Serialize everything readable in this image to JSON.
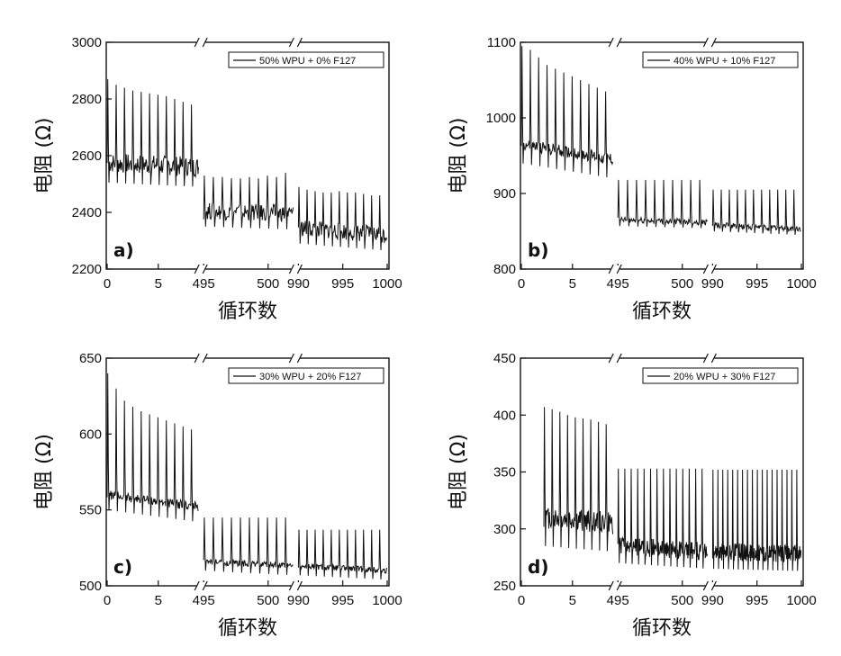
{
  "chart_data": [
    {
      "type": "line",
      "panel_label": "a)",
      "xlabel": "循环数",
      "ylabel": "电阻 (Ω)",
      "ylim": [
        2200,
        3000
      ],
      "yticks": [
        "2200",
        "2400",
        "2600",
        "2800",
        "3000"
      ],
      "segments": [
        {
          "xlim": [
            0,
            9
          ],
          "xticks": [
            "0",
            "5"
          ],
          "baseline": [
            2575,
            2560
          ],
          "peaks": [
            2870,
            2850,
            2840,
            2830,
            2825,
            2820,
            2815,
            2810,
            2800,
            2790,
            2780
          ],
          "trough_depth": 70,
          "noise": 35
        },
        {
          "xlim": [
            495,
            502
          ],
          "xticks": [
            "495",
            "500"
          ],
          "baseline": [
            2405,
            2395
          ],
          "peaks": [
            2530,
            2525,
            2525,
            2520,
            2520,
            2525,
            2520,
            2530,
            2525,
            2540
          ],
          "trough_depth": 55,
          "noise": 30
        },
        {
          "xlim": [
            990,
            1000
          ],
          "xticks": [
            "990",
            "995",
            "1000"
          ],
          "baseline": [
            2345,
            2320
          ],
          "peaks": [
            2490,
            2480,
            2475,
            2470,
            2470,
            2475,
            2470,
            2470,
            2465,
            2460,
            2460
          ],
          "trough_depth": 55,
          "noise": 30
        }
      ],
      "series": [
        {
          "name": "50% WPU + 0% F127"
        }
      ]
    },
    {
      "type": "line",
      "panel_label": "b)",
      "xlabel": "循环数",
      "ylabel": "电阻 (Ω)",
      "ylim": [
        800,
        1100
      ],
      "yticks": [
        "800",
        "900",
        "1000",
        "1100"
      ],
      "segments": [
        {
          "xlim": [
            0,
            9
          ],
          "xticks": [
            "0",
            "5"
          ],
          "baseline": [
            965,
            945
          ],
          "peaks": [
            1095,
            1090,
            1080,
            1070,
            1065,
            1060,
            1055,
            1050,
            1045,
            1040,
            1035
          ],
          "trough_depth": 25,
          "noise": 8
        },
        {
          "xlim": [
            495,
            502
          ],
          "xticks": [
            "495",
            "500"
          ],
          "baseline": [
            865,
            862
          ],
          "peaks": [
            918,
            918,
            918,
            918,
            918,
            918,
            918,
            918,
            918,
            918
          ],
          "trough_depth": 8,
          "noise": 4
        },
        {
          "xlim": [
            990,
            1000
          ],
          "xticks": [
            "990",
            "995",
            "1000"
          ],
          "baseline": [
            858,
            853
          ],
          "peaks": [
            905,
            905,
            905,
            905,
            905,
            905,
            905,
            905,
            905,
            905,
            905
          ],
          "trough_depth": 8,
          "noise": 4
        }
      ],
      "series": [
        {
          "name": "40% WPU + 10% F127"
        }
      ]
    },
    {
      "type": "line",
      "panel_label": "c)",
      "xlabel": "循环数",
      "ylabel": "电阻 (Ω)",
      "ylim": [
        500,
        650
      ],
      "yticks": [
        "500",
        "550",
        "600",
        "650"
      ],
      "segments": [
        {
          "xlim": [
            0,
            9
          ],
          "xticks": [
            "0",
            "5"
          ],
          "baseline": [
            560,
            552
          ],
          "peaks": [
            640,
            630,
            622,
            618,
            615,
            613,
            611,
            609,
            607,
            605,
            603
          ],
          "trough_depth": 10,
          "noise": 3
        },
        {
          "xlim": [
            495,
            502
          ],
          "xticks": [
            "495",
            "500"
          ],
          "baseline": [
            516,
            513
          ],
          "peaks": [
            545,
            545,
            545,
            545,
            545,
            545,
            545,
            545,
            545,
            545
          ],
          "trough_depth": 6,
          "noise": 2
        },
        {
          "xlim": [
            990,
            1000
          ],
          "xticks": [
            "990",
            "995",
            "1000"
          ],
          "baseline": [
            513,
            510
          ],
          "peaks": [
            537,
            537,
            537,
            537,
            537,
            537,
            537,
            537,
            537,
            537,
            537
          ],
          "trough_depth": 6,
          "noise": 2
        }
      ],
      "series": [
        {
          "name": "30% WPU + 20% F127"
        }
      ]
    },
    {
      "type": "line",
      "panel_label": "d)",
      "xlabel": "循环数",
      "ylabel": "电阻 (Ω)",
      "ylim": [
        250,
        450
      ],
      "yticks": [
        "250",
        "300",
        "350",
        "400",
        "450"
      ],
      "segments": [
        {
          "xlim": [
            0,
            9
          ],
          "xticks": [
            "0",
            "5"
          ],
          "start_x": 2.2,
          "baseline": [
            310,
            305
          ],
          "peaks": [
            407,
            405,
            403,
            400,
            398,
            397,
            396,
            394,
            392
          ],
          "trough_depth": 25,
          "noise": 10
        },
        {
          "xlim": [
            495,
            502
          ],
          "xticks": [
            "495",
            "500"
          ],
          "baseline": [
            285,
            280
          ],
          "peaks": [
            353,
            353,
            353,
            353,
            353,
            353,
            353,
            353,
            353,
            353,
            353,
            353,
            353,
            353
          ],
          "trough_depth": 15,
          "noise": 8
        },
        {
          "xlim": [
            990,
            1000
          ],
          "xticks": [
            "990",
            "995",
            "1000"
          ],
          "baseline": [
            280,
            278
          ],
          "peaks": [
            352,
            352,
            352,
            352,
            352,
            352,
            352,
            352,
            352,
            352,
            352,
            352,
            352,
            352,
            352,
            352,
            352,
            352
          ],
          "trough_depth": 15,
          "noise": 8
        }
      ],
      "series": [
        {
          "name": "20% WPU + 30% F127"
        }
      ]
    }
  ]
}
